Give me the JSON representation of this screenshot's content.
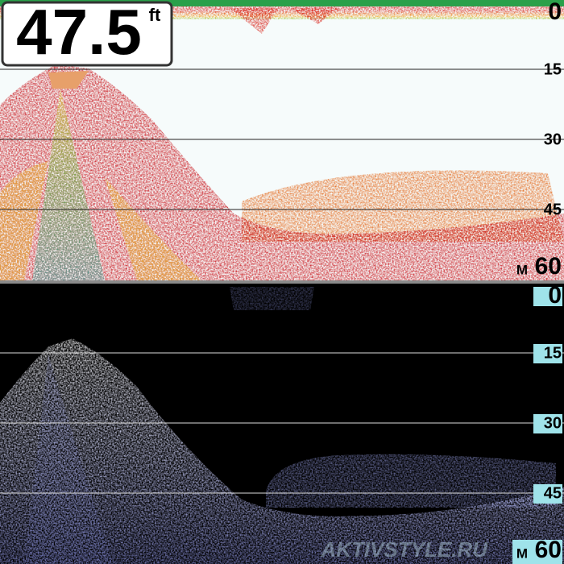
{
  "depth_readout": {
    "value": "47.5",
    "unit": "ft"
  },
  "top_panel": {
    "scale": [
      "0",
      "15",
      "30",
      "45"
    ],
    "range_unit": "M",
    "range": "60"
  },
  "bottom_panel": {
    "scale": [
      "0",
      "15",
      "30",
      "45"
    ],
    "range_unit": "M",
    "range": "60"
  },
  "watermark": "AKTIVSTYLE.RU"
}
